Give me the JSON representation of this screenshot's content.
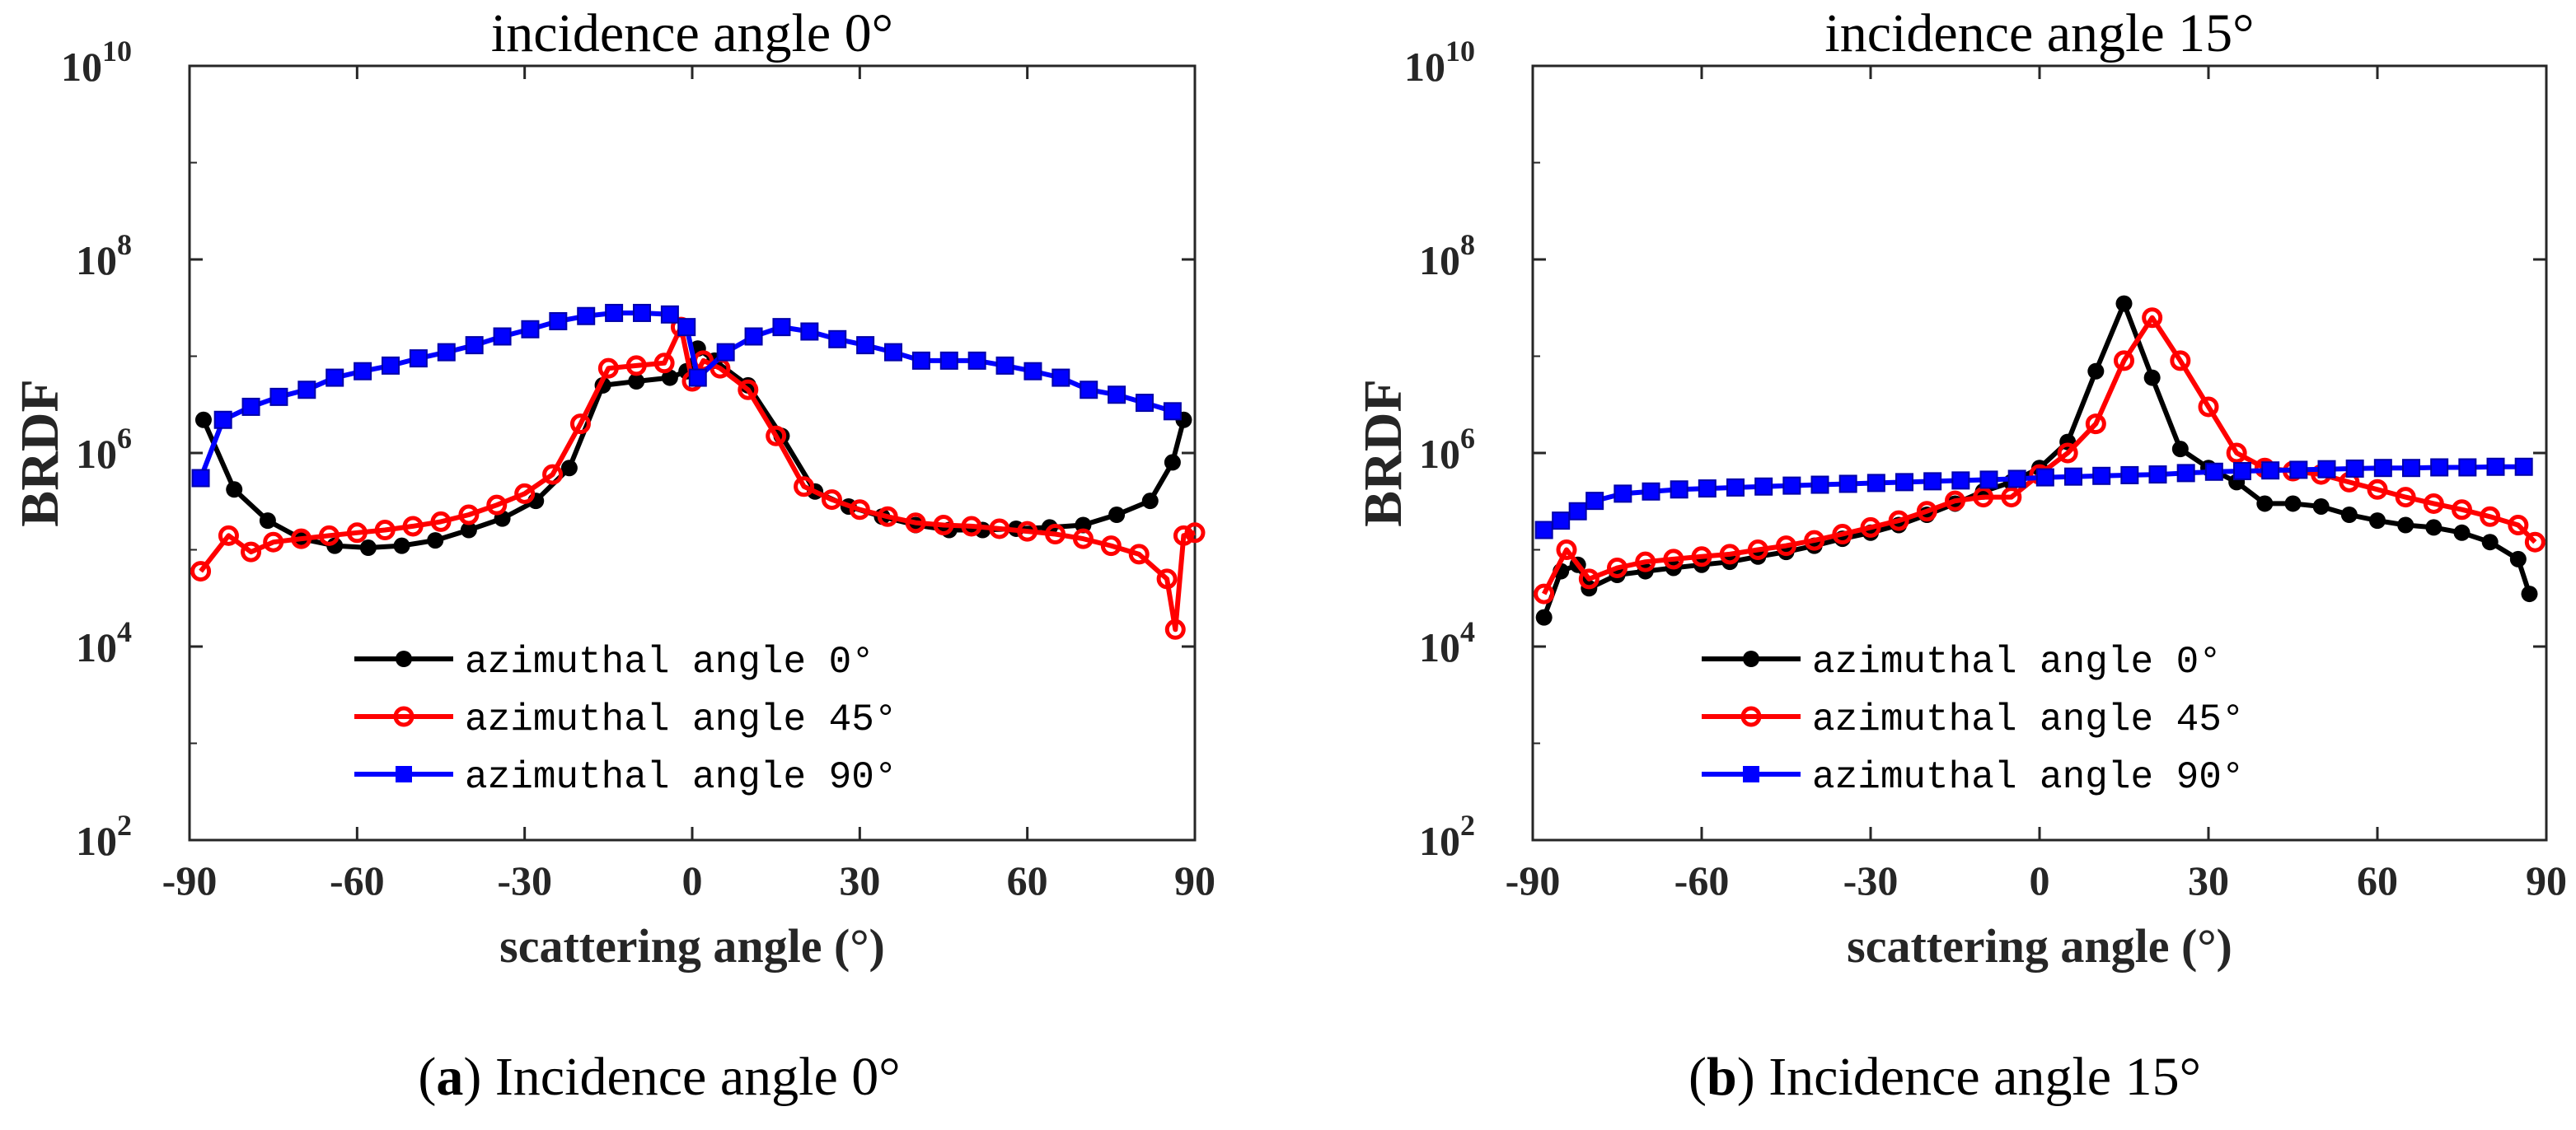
{
  "colors": {
    "series_azimuth_0": "#000000",
    "series_azimuth_45": "#ff0000",
    "series_azimuth_90": "#0000ff"
  },
  "captions": [
    {
      "letter": "a",
      "text": "Incidence angle 0°"
    },
    {
      "letter": "b",
      "text": "Incidence angle 15°"
    }
  ],
  "chart_data": [
    {
      "type": "line",
      "title": "incidence angle 0°",
      "xlabel": "scattering angle (°)",
      "ylabel": "BRDF",
      "yscale": "log",
      "xlim": [
        -90,
        90
      ],
      "ylim": [
        100,
        10000000000
      ],
      "xticks": [
        "-90",
        "-60",
        "-30",
        "0",
        "30",
        "60",
        "90"
      ],
      "yticks": [
        {
          "base": "10",
          "exp": "2"
        },
        {
          "base": "10",
          "exp": "4"
        },
        {
          "base": "10",
          "exp": "6"
        },
        {
          "base": "10",
          "exp": "8"
        },
        {
          "base": "10",
          "exp": "10"
        }
      ],
      "grid": false,
      "legend_position": "bottom-center",
      "series": [
        {
          "name": "azimuthal angle 0°",
          "color": "#000000",
          "marker": "dot",
          "x": [
            -87.5,
            -82,
            -76,
            -70,
            -64,
            -58,
            -52,
            -46,
            -40,
            -34,
            -28,
            -22,
            -16,
            -10,
            -4,
            -1,
            1,
            4,
            10,
            16,
            22,
            28,
            34,
            40,
            46,
            52,
            58,
            64,
            70,
            76,
            82,
            86,
            88
          ],
          "y": [
            2200000,
            420000,
            200000,
            130000,
            110000,
            105000,
            110000,
            125000,
            160000,
            210000,
            320000,
            700000,
            5000000,
            5500000,
            6000000,
            7000000,
            12000000,
            9000000,
            5000000,
            1500000,
            400000,
            280000,
            220000,
            180000,
            160000,
            160000,
            165000,
            170000,
            180000,
            230000,
            320000,
            800000,
            2200000
          ]
        },
        {
          "name": "azimuthal angle 45°",
          "color": "#ff0000",
          "marker": "circle",
          "x": [
            -88,
            -83,
            -79,
            -75,
            -70,
            -65,
            -60,
            -55,
            -50,
            -45,
            -40,
            -35,
            -30,
            -25,
            -20,
            -15,
            -10,
            -5,
            -2,
            0,
            2,
            5,
            10,
            15,
            20,
            25,
            30,
            35,
            40,
            45,
            50,
            55,
            60,
            65,
            70,
            75,
            80,
            85,
            86.5,
            88,
            90
          ],
          "y": [
            60000,
            140000,
            95000,
            120000,
            130000,
            140000,
            150000,
            160000,
            175000,
            195000,
            230000,
            290000,
            380000,
            600000,
            2000000,
            7500000,
            8000000,
            8500000,
            20000000,
            5500000,
            9000000,
            7500000,
            4500000,
            1500000,
            450000,
            330000,
            260000,
            220000,
            190000,
            180000,
            175000,
            165000,
            155000,
            145000,
            130000,
            110000,
            90000,
            50000,
            15000,
            140000,
            150000
          ]
        },
        {
          "name": "azimuthal angle 90°",
          "color": "#0000ff",
          "marker": "square",
          "x": [
            -88,
            -84,
            -79,
            -74,
            -69,
            -64,
            -59,
            -54,
            -49,
            -44,
            -39,
            -34,
            -29,
            -24,
            -19,
            -14,
            -9,
            -4,
            -1,
            1,
            6,
            11,
            16,
            21,
            26,
            31,
            36,
            41,
            46,
            51,
            56,
            61,
            66,
            71,
            76,
            81,
            86
          ],
          "y": [
            550000,
            2200000,
            3000000,
            3800000,
            4500000,
            6000000,
            7000000,
            8000000,
            9500000,
            11000000,
            13000000,
            16000000,
            19000000,
            23000000,
            26000000,
            28000000,
            28000000,
            27000000,
            20000000,
            6000000,
            11000000,
            16000000,
            20000000,
            18000000,
            15000000,
            13000000,
            11000000,
            9000000,
            9000000,
            9000000,
            8000000,
            7000000,
            6000000,
            4500000,
            4000000,
            3300000,
            2700000
          ]
        }
      ]
    },
    {
      "type": "line",
      "title": "incidence angle 15°",
      "xlabel": "scattering angle (°)",
      "ylabel": "BRDF",
      "yscale": "log",
      "xlim": [
        -90,
        90
      ],
      "ylim": [
        100,
        10000000000
      ],
      "xticks": [
        "-90",
        "-60",
        "-30",
        "0",
        "30",
        "60",
        "90"
      ],
      "yticks": [
        {
          "base": "10",
          "exp": "2"
        },
        {
          "base": "10",
          "exp": "4"
        },
        {
          "base": "10",
          "exp": "6"
        },
        {
          "base": "10",
          "exp": "8"
        },
        {
          "base": "10",
          "exp": "10"
        }
      ],
      "grid": false,
      "legend_position": "bottom-center",
      "series": [
        {
          "name": "azimuthal angle 0°",
          "color": "#000000",
          "marker": "dot",
          "x": [
            -88,
            -85,
            -82,
            -80,
            -75,
            -70,
            -65,
            -60,
            -55,
            -50,
            -45,
            -40,
            -35,
            -30,
            -25,
            -20,
            -15,
            -10,
            -5,
            0,
            5,
            10,
            15,
            20,
            25,
            30,
            35,
            40,
            45,
            50,
            55,
            60,
            65,
            70,
            75,
            80,
            85,
            87
          ],
          "y": [
            20000,
            60000,
            70000,
            40000,
            55000,
            60000,
            65000,
            70000,
            75000,
            85000,
            95000,
            110000,
            130000,
            150000,
            180000,
            230000,
            300000,
            400000,
            500000,
            700000,
            1300000,
            7000000,
            35000000,
            6000000,
            1100000,
            700000,
            500000,
            300000,
            300000,
            280000,
            230000,
            200000,
            180000,
            170000,
            150000,
            120000,
            80000,
            35000
          ]
        },
        {
          "name": "azimuthal angle 45°",
          "color": "#ff0000",
          "marker": "circle",
          "x": [
            -88,
            -84,
            -80,
            -75,
            -70,
            -65,
            -60,
            -55,
            -50,
            -45,
            -40,
            -35,
            -30,
            -25,
            -20,
            -15,
            -10,
            -5,
            0,
            5,
            10,
            15,
            20,
            25,
            30,
            35,
            40,
            45,
            50,
            55,
            60,
            65,
            70,
            75,
            80,
            85,
            88
          ],
          "y": [
            35000,
            100000,
            50000,
            65000,
            75000,
            80000,
            85000,
            90000,
            100000,
            110000,
            125000,
            145000,
            170000,
            200000,
            250000,
            320000,
            350000,
            350000,
            600000,
            1000000,
            2000000,
            9000000,
            25000000,
            9000000,
            3000000,
            1000000,
            700000,
            650000,
            600000,
            500000,
            420000,
            350000,
            300000,
            260000,
            220000,
            180000,
            120000
          ]
        },
        {
          "name": "azimuthal angle 90°",
          "color": "#0000ff",
          "marker": "square",
          "x": [
            -88,
            -85,
            -82,
            -79,
            -74,
            -69,
            -64,
            -59,
            -54,
            -49,
            -44,
            -39,
            -34,
            -29,
            -24,
            -19,
            -14,
            -9,
            -4,
            1,
            6,
            11,
            16,
            21,
            26,
            31,
            36,
            41,
            46,
            51,
            56,
            61,
            66,
            71,
            76,
            81,
            86
          ],
          "y": [
            160000,
            200000,
            250000,
            320000,
            380000,
            400000,
            420000,
            430000,
            440000,
            450000,
            460000,
            470000,
            480000,
            490000,
            500000,
            510000,
            520000,
            530000,
            540000,
            560000,
            570000,
            580000,
            590000,
            600000,
            620000,
            640000,
            650000,
            660000,
            670000,
            680000,
            690000,
            700000,
            700000,
            710000,
            710000,
            720000,
            720000
          ]
        }
      ]
    }
  ]
}
